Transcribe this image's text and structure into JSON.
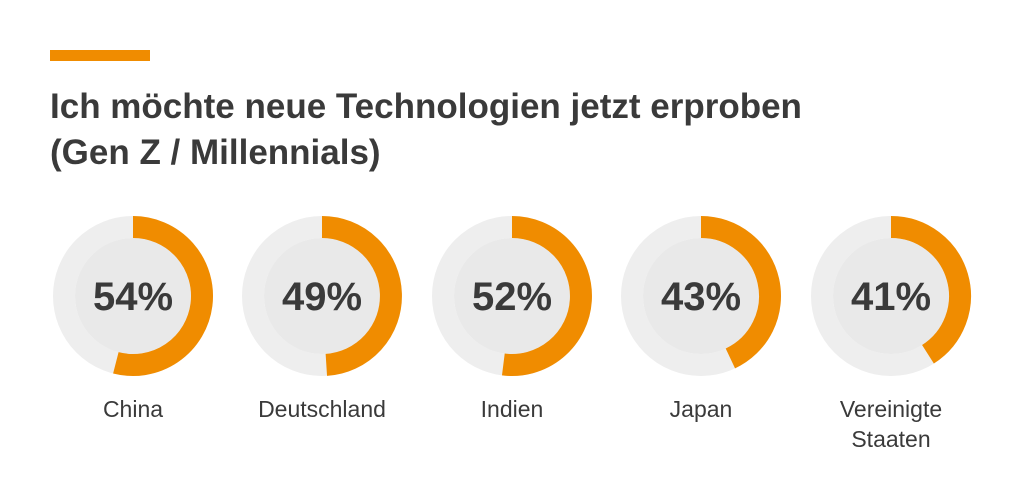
{
  "chart_data": {
    "type": "pie",
    "title_line1": "Ich möchte neue Technologien jetzt erproben",
    "title_line2": "(Gen Z / Millennials)",
    "categories": [
      {
        "name": [
          "China"
        ],
        "value": 54,
        "label": "54%"
      },
      {
        "name": [
          "Deutschland"
        ],
        "value": 49,
        "label": "49%"
      },
      {
        "name": [
          "Indien"
        ],
        "value": 52,
        "label": "52%"
      },
      {
        "name": [
          "Japan"
        ],
        "value": 43,
        "label": "43%"
      },
      {
        "name": [
          "Vereinigte",
          "Staaten"
        ],
        "value": 41,
        "label": "41%"
      }
    ],
    "colors": {
      "accent": "#f08c00",
      "track": "#eeeeee",
      "inner": "#e9e9e9",
      "text": "#3a3a3a"
    }
  }
}
